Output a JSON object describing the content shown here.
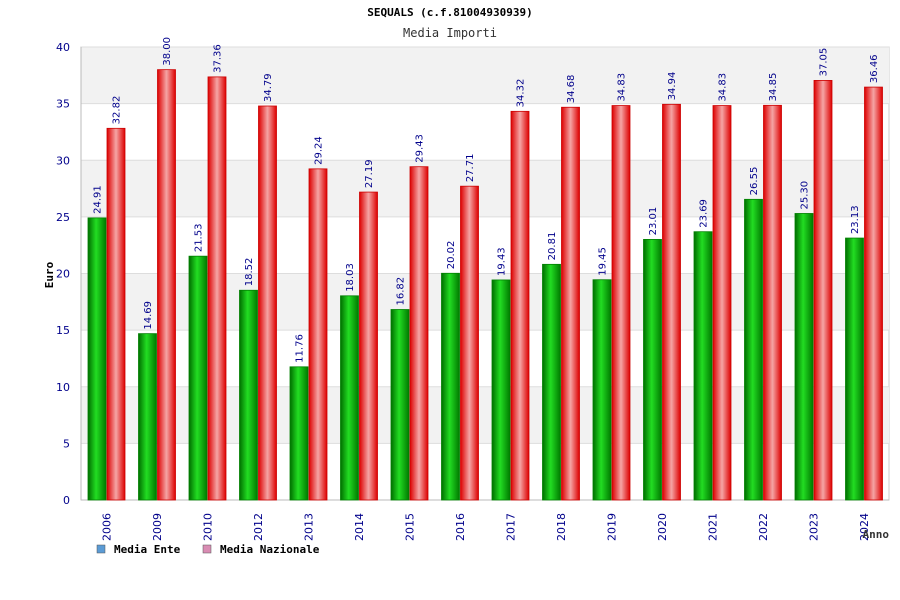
{
  "chart_data": {
    "type": "bar",
    "title": "SEQUALS (c.f.81004930939)",
    "subtitle": "Media Importi",
    "ylabel": "Euro",
    "xlabel": "Anno",
    "ylim": [
      0,
      40
    ],
    "yticks": [
      "0",
      "5",
      "10",
      "15",
      "20",
      "25",
      "30",
      "35",
      "40"
    ],
    "grid": true,
    "legend_position": "bottom-left",
    "categories": [
      "2006",
      "2009",
      "2010",
      "2012",
      "2013",
      "2014",
      "2015",
      "2016",
      "2017",
      "2018",
      "2019",
      "2020",
      "2021",
      "2022",
      "2023",
      "2024"
    ],
    "series": [
      {
        "name": "Media Ente",
        "color": "#00b000",
        "legend_color": "#5b9bd5",
        "values": [
          24.91,
          14.69,
          21.53,
          18.52,
          11.76,
          18.03,
          16.82,
          20.02,
          19.43,
          20.81,
          19.45,
          23.01,
          23.69,
          26.55,
          25.3,
          23.13
        ],
        "labels": [
          "24.91",
          "14.69",
          "21.53",
          "18.52",
          "11.76",
          "18.03",
          "16.82",
          "20.02",
          "19.43",
          "20.81",
          "19.45",
          "23.01",
          "23.69",
          "26.55",
          "25.30",
          "23.13"
        ]
      },
      {
        "name": "Media Nazionale",
        "color": "#ee1111",
        "legend_color": "#d98cb3",
        "values": [
          32.82,
          38.0,
          37.36,
          34.79,
          29.24,
          27.19,
          29.43,
          27.71,
          34.32,
          34.68,
          34.83,
          34.94,
          34.83,
          34.85,
          37.05,
          36.46
        ],
        "labels": [
          "32.82",
          "38.00",
          "37.36",
          "34.79",
          "29.24",
          "27.19",
          "29.43",
          "27.71",
          "34.32",
          "34.68",
          "34.83",
          "34.94",
          "34.83",
          "34.85",
          "37.05",
          "36.46"
        ]
      }
    ]
  }
}
